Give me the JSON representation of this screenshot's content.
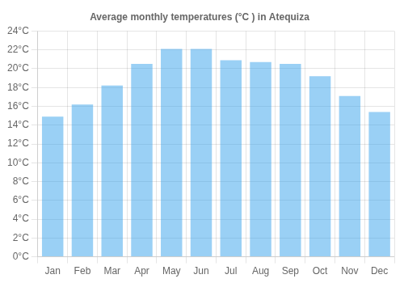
{
  "chart_data": {
    "type": "bar",
    "title": "Average monthly temperatures (°C ) in Atequiza",
    "categories": [
      "Jan",
      "Feb",
      "Mar",
      "Apr",
      "May",
      "Jun",
      "Jul",
      "Aug",
      "Sep",
      "Oct",
      "Nov",
      "Dec"
    ],
    "values": [
      14.9,
      16.2,
      18.2,
      20.5,
      22.1,
      22.1,
      20.9,
      20.7,
      20.5,
      19.2,
      17.1,
      15.4
    ],
    "ylim": [
      0,
      24
    ],
    "yticks": [
      {
        "value": 0,
        "label": "0°C"
      },
      {
        "value": 2,
        "label": "2°C"
      },
      {
        "value": 4,
        "label": "4°C"
      },
      {
        "value": 6,
        "label": "6°C"
      },
      {
        "value": 8,
        "label": "8°C"
      },
      {
        "value": 10,
        "label": "10°C"
      },
      {
        "value": 12,
        "label": "12°C"
      },
      {
        "value": 14,
        "label": "14°C"
      },
      {
        "value": 16,
        "label": "16°C"
      },
      {
        "value": 18,
        "label": "18°C"
      },
      {
        "value": 20,
        "label": "20°C"
      },
      {
        "value": 22,
        "label": "22°C"
      },
      {
        "value": 24,
        "label": "24°C"
      }
    ],
    "grid": true
  }
}
